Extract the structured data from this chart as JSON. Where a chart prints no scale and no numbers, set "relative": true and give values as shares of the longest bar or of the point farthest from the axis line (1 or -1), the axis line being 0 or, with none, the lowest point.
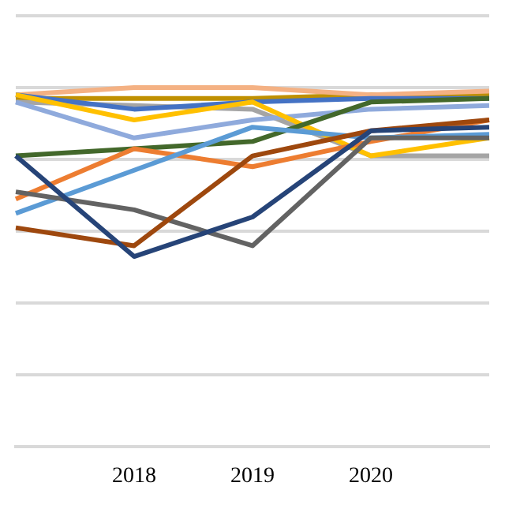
{
  "chart_data": {
    "type": "line",
    "relative": true,
    "grid": "y",
    "legend": false,
    "marker": "none",
    "line_style": "solid",
    "categories": [
      null,
      "2018",
      "2019",
      "2020",
      null
    ],
    "series": [
      {
        "color": "#264478",
        "values": [
          0.81,
          0.53,
          0.64,
          0.88,
          0.89
        ]
      },
      {
        "color": "#9e480e",
        "values": [
          0.61,
          0.56,
          0.81,
          0.88,
          0.91
        ]
      },
      {
        "color": "#636363",
        "values": [
          0.71,
          0.66,
          0.56,
          0.86,
          0.86
        ]
      },
      {
        "color": "#5b9bd5",
        "values": [
          0.65,
          0.77,
          0.89,
          0.86,
          0.87
        ]
      },
      {
        "color": "#ed7d31",
        "values": [
          0.69,
          0.83,
          0.78,
          0.85,
          0.91
        ]
      },
      {
        "color": "#43682b",
        "values": [
          0.81,
          0.83,
          0.85,
          0.96,
          0.97
        ]
      },
      {
        "color": "#ffc000",
        "values": [
          0.98,
          0.91,
          0.96,
          0.81,
          0.86
        ]
      },
      {
        "color": "#4472c4",
        "values": [
          0.98,
          0.94,
          0.96,
          0.97,
          0.97
        ]
      },
      {
        "color": "#8faadc",
        "values": [
          0.96,
          0.86,
          0.91,
          0.94,
          0.95
        ]
      },
      {
        "color": "#f4b183",
        "values": [
          0.98,
          1,
          1,
          0.98,
          0.99
        ]
      },
      {
        "color": "#a5a5a5",
        "values": [
          0.96,
          0.95,
          0.94,
          0.81,
          0.81
        ]
      },
      {
        "color": "#bf9000",
        "values": [
          0.97,
          0.97,
          0.97,
          0.98,
          0.98
        ]
      }
    ]
  }
}
